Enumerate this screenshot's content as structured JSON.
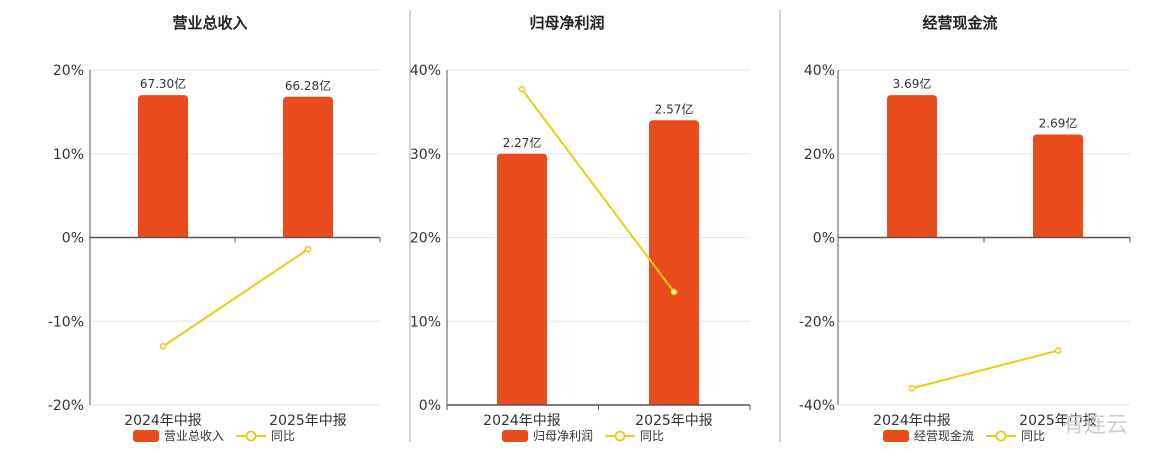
{
  "watermark": "有连云",
  "colors": {
    "bar": "#E84C1C",
    "line": "#F2C811",
    "grid": "#E6E6E6",
    "axis": "#555555",
    "divider": "#AAAAAA"
  },
  "chart_data": [
    {
      "type": "bar+line",
      "title": "营业总收入",
      "categories": [
        "2024年中报",
        "2025年中报"
      ],
      "yticks": [
        "20%",
        "10%",
        "0%",
        "-10%",
        "-20%"
      ],
      "ylim": [
        -20,
        20
      ],
      "bar_values": [
        17,
        16.8
      ],
      "bar_labels": [
        "67.30亿",
        "66.28亿"
      ],
      "yoy_values": [
        -13,
        -1.4
      ],
      "legend": [
        "营业总收入",
        "同比"
      ],
      "grid": true
    },
    {
      "type": "bar+line",
      "title": "归母净利润",
      "categories": [
        "2024年中报",
        "2025年中报"
      ],
      "yticks": [
        "40%",
        "30%",
        "20%",
        "10%",
        "0%"
      ],
      "ylim": [
        0,
        40
      ],
      "bar_values": [
        30,
        34
      ],
      "bar_labels": [
        "2.27亿",
        "2.57亿"
      ],
      "yoy_values": [
        37.7,
        13.5
      ],
      "legend": [
        "归母净利润",
        "同比"
      ],
      "grid": true
    },
    {
      "type": "bar+line",
      "title": "经营现金流",
      "categories": [
        "2024年中报",
        "2025年中报"
      ],
      "yticks": [
        "40%",
        "20%",
        "0%",
        "-20%",
        "-40%"
      ],
      "ylim": [
        -40,
        40
      ],
      "bar_values": [
        34,
        24.6
      ],
      "bar_labels": [
        "3.69亿",
        "2.69亿"
      ],
      "yoy_values": [
        -36,
        -27
      ],
      "legend": [
        "经营现金流",
        "同比"
      ],
      "grid": true
    }
  ]
}
